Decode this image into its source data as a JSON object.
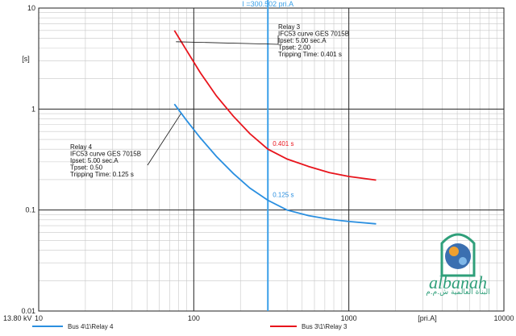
{
  "chart_data": {
    "type": "line",
    "title": "",
    "xlabel": "[pri.A]",
    "ylabel": "[s]",
    "x_scale": "log",
    "y_scale": "log",
    "xlim": [
      10,
      10000
    ],
    "ylim": [
      0.01,
      10
    ],
    "grid": true,
    "x_ticks": [
      "10",
      "100",
      "1000",
      "10000"
    ],
    "y_ticks": [
      "10",
      "1",
      "0.1",
      "0.01"
    ],
    "voltage_label": "13.80 kV",
    "current_marker": {
      "x": 300.502,
      "label": "I =300.502 pri.A"
    },
    "colors": {
      "relay3": "#e8141c",
      "relay4": "#2a8fe0",
      "marker": "#3aa0e8"
    },
    "series": [
      {
        "name": "Bus 3\\1\\Relay 3",
        "color": "#e8141c",
        "x": [
          75,
          90,
          110,
          140,
          180,
          230,
          300.502,
          400,
          550,
          750,
          1000,
          1500
        ],
        "y": [
          6.0,
          3.8,
          2.3,
          1.35,
          0.85,
          0.57,
          0.401,
          0.32,
          0.27,
          0.235,
          0.215,
          0.198
        ]
      },
      {
        "name": "Bus 4\\1\\Relay 4",
        "color": "#2a8fe0",
        "x": [
          75,
          90,
          110,
          140,
          180,
          230,
          300.502,
          400,
          550,
          750,
          1000,
          1500
        ],
        "y": [
          1.12,
          0.77,
          0.52,
          0.34,
          0.23,
          0.165,
          0.125,
          0.1,
          0.088,
          0.081,
          0.077,
          0.073
        ]
      }
    ],
    "point_labels": [
      {
        "series": 0,
        "text": "0.401 s"
      },
      {
        "series": 1,
        "text": "0.125 s"
      }
    ],
    "annotations": [
      {
        "lines": [
          "Relay 3",
          "IFC53 curve GES 7015B",
          "Ipset: 5.00 sec.A",
          "Tpset: 2.00",
          "Tripping Time: 0.401 s"
        ]
      },
      {
        "lines": [
          "Relay 4",
          "IFC53 curve GES 7015B",
          "Ipset: 5.00 sec.A",
          "Tpset: 0.50",
          "Tripping Time: 0.125 s"
        ]
      }
    ],
    "legend": [
      {
        "label": "Bus 4\\1\\Relay 4",
        "color": "#2a8fe0"
      },
      {
        "label": "Bus 3\\1\\Relay 3",
        "color": "#e8141c"
      }
    ]
  },
  "watermark": {
    "brand": "albanah",
    "tagline": "البناة العالمية ش.م.م"
  }
}
